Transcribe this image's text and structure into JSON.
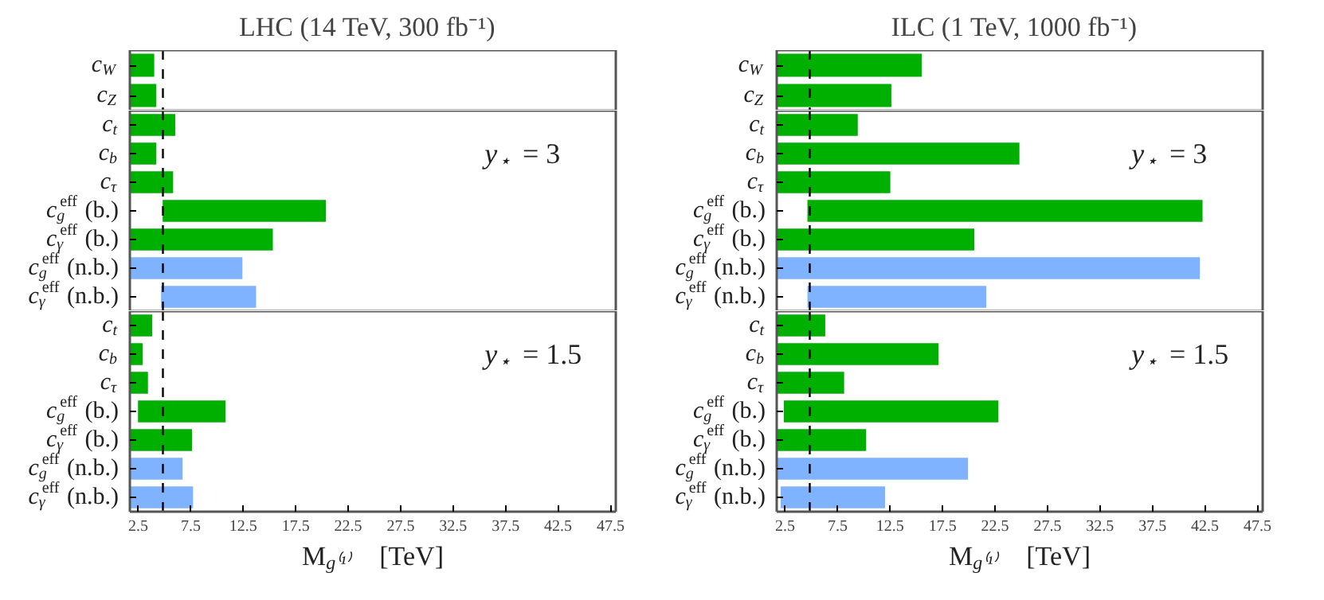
{
  "chart_data": [
    {
      "type": "bar",
      "orientation": "horizontal",
      "title": "LHC (14 TeV, 300 fb⁻¹)",
      "categories": [
        "c$_{W}$",
        "c$_{Z}$"
      ],
      "values": [
        2.4,
        2.6
      ],
      "base": [
        1.7,
        1.7
      ],
      "colors": [
        "#00b000",
        "#00b000"
      ],
      "xlim": [
        1.7,
        48
      ],
      "xticks": [
        2.5,
        7.5,
        12.5,
        17.5,
        22.5,
        27.5,
        32.5,
        37.5,
        42.5,
        47.5
      ],
      "tick_labels": "y",
      "grid": false,
      "ref_lines": [
        {
          "axis": "x",
          "value": 4.85,
          "color": "#000000",
          "line_style": "dashed"
        }
      ]
    },
    {
      "type": "bar",
      "orientation": "horizontal",
      "categories": [
        "c$_{t}$",
        "c$_{b}$",
        "c$_{τ}$",
        "c$_{g}$$^{eff}$ (b.)",
        "c$_{γ}$$^{eff}$ (b.)",
        "c$_{g}$$^{eff}$ (n.b.)",
        "c$_{γ}$$^{eff}$ (n.b.)"
      ],
      "values": [
        4.4,
        2.6,
        4.2,
        15.7,
        13.7,
        10.8,
        9.2
      ],
      "base": [
        1.7,
        1.7,
        1.7,
        4.75,
        1.7,
        1.7,
        4.6
      ],
      "colors": [
        "#00b000",
        "#00b000",
        "#00b000",
        "#00b000",
        "#00b000",
        "#80b3ff",
        "#80b3ff"
      ],
      "xlim": [
        1.7,
        48
      ],
      "xticks": [
        2.5,
        7.5,
        12.5,
        17.5,
        22.5,
        27.5,
        32.5,
        37.5,
        42.5,
        47.5
      ],
      "tick_labels": "y",
      "grid": false,
      "annotations": [
        "y$_{⋆}$ = 3"
      ],
      "ref_lines": [
        {
          "axis": "x",
          "value": 4.85,
          "color": "#000000",
          "line_style": "dashed"
        }
      ]
    },
    {
      "type": "bar",
      "orientation": "horizontal",
      "xlabel": "M$_{g⁽¹⁾}$ [TeV]",
      "categories": [
        "c$_{t}$",
        "c$_{b}$",
        "c$_{τ}$",
        "c$_{g}$$^{eff}$ (b.)",
        "c$_{γ}$$^{eff}$ (b.)",
        "c$_{g}$$^{eff}$ (n.b.)",
        "c$_{γ}$$^{eff}$ (n.b.)"
      ],
      "values": [
        2.2,
        1.3,
        1.8,
        8.5,
        6.0,
        5.1,
        6.1
      ],
      "base": [
        1.7,
        1.7,
        1.7,
        2.4,
        1.7,
        1.7,
        1.7
      ],
      "colors": [
        "#00b000",
        "#00b000",
        "#00b000",
        "#00b000",
        "#00b000",
        "#80b3ff",
        "#80b3ff"
      ],
      "xlim": [
        1.7,
        48
      ],
      "xticks": [
        2.5,
        7.5,
        12.5,
        17.5,
        22.5,
        27.5,
        32.5,
        37.5,
        42.5,
        47.5
      ],
      "grid": false,
      "annotations": [
        "y$_{⋆}$ = 1.5"
      ],
      "ref_lines": [
        {
          "axis": "x",
          "value": 4.85,
          "color": "#000000",
          "line_style": "dashed"
        }
      ]
    },
    {
      "type": "bar",
      "orientation": "horizontal",
      "title": "ILC (1 TeV, 1000 fb⁻¹)",
      "categories": [
        "c$_{W}$",
        "c$_{Z}$"
      ],
      "values": [
        13.9,
        11.0
      ],
      "base": [
        1.7,
        1.7
      ],
      "colors": [
        "#00b000",
        "#00b000"
      ],
      "xlim": [
        1.7,
        48
      ],
      "xticks": [
        2.5,
        7.5,
        12.5,
        17.5,
        22.5,
        27.5,
        32.5,
        37.5,
        42.5,
        47.5
      ],
      "tick_labels": "y",
      "grid": false,
      "ref_lines": [
        {
          "axis": "x",
          "value": 4.85,
          "color": "#000000",
          "line_style": "dashed"
        }
      ]
    },
    {
      "type": "bar",
      "orientation": "horizontal",
      "categories": [
        "c$_{t}$",
        "c$_{b}$",
        "c$_{τ}$",
        "c$_{g}$$^{eff}$ (b.)",
        "c$_{γ}$$^{eff}$ (b.)",
        "c$_{g}$$^{eff}$ (n.b.)",
        "c$_{γ}$$^{eff}$ (n.b.)"
      ],
      "values": [
        7.8,
        23.2,
        10.9,
        37.8,
        18.9,
        40.4,
        17.2
      ],
      "base": [
        1.7,
        1.7,
        1.7,
        4.55,
        1.7,
        1.7,
        4.55
      ],
      "colors": [
        "#00b000",
        "#00b000",
        "#00b000",
        "#00b000",
        "#00b000",
        "#80b3ff",
        "#80b3ff"
      ],
      "xlim": [
        1.7,
        48
      ],
      "xticks": [
        2.5,
        7.5,
        12.5,
        17.5,
        22.5,
        27.5,
        32.5,
        37.5,
        42.5,
        47.5
      ],
      "tick_labels": "y",
      "grid": false,
      "annotations": [
        "y$_{⋆}$ = 3"
      ],
      "ref_lines": [
        {
          "axis": "x",
          "value": 4.85,
          "color": "#000000",
          "line_style": "dashed"
        }
      ]
    },
    {
      "type": "bar",
      "orientation": "horizontal",
      "xlabel": "M$_{g⁽¹⁾}$ [TeV]",
      "categories": [
        "c$_{t}$",
        "c$_{b}$",
        "c$_{τ}$",
        "c$_{g}$$^{eff}$ (b.)",
        "c$_{γ}$$^{eff}$ (b.)",
        "c$_{g}$$^{eff}$ (n.b.)",
        "c$_{γ}$$^{eff}$ (n.b.)"
      ],
      "values": [
        4.7,
        15.5,
        6.5,
        20.6,
        8.6,
        18.3,
        10.1
      ],
      "base": [
        1.7,
        1.7,
        1.7,
        2.3,
        1.7,
        1.7,
        2.0
      ],
      "colors": [
        "#00b000",
        "#00b000",
        "#00b000",
        "#00b000",
        "#00b000",
        "#80b3ff",
        "#80b3ff"
      ],
      "xlim": [
        1.7,
        48
      ],
      "xticks": [
        2.5,
        7.5,
        12.5,
        17.5,
        22.5,
        27.5,
        32.5,
        37.5,
        42.5,
        47.5
      ],
      "grid": false,
      "annotations": [
        "y$_{⋆}$ = 1.5"
      ],
      "ref_lines": [
        {
          "axis": "x",
          "value": 4.85,
          "color": "#000000",
          "line_style": "dashed"
        }
      ]
    }
  ]
}
